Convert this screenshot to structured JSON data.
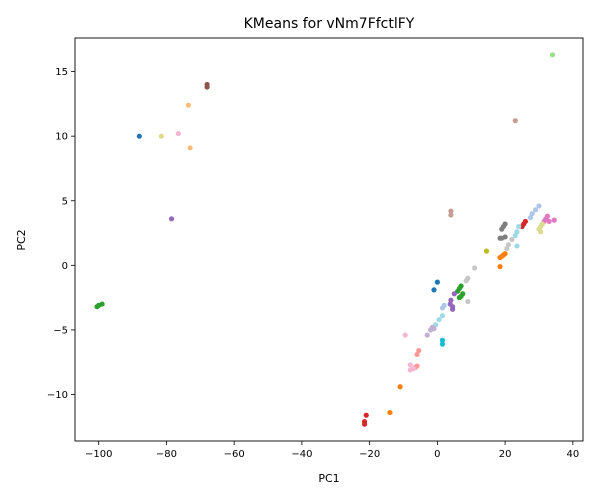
{
  "chart_data": {
    "type": "scatter",
    "title": "KMeans for vNm7FfctlFY",
    "xlabel": "PC1",
    "ylabel": "PC2",
    "xlim": [
      -107,
      43
    ],
    "ylim": [
      -13.6,
      17.6
    ],
    "xticks": [
      -100,
      -80,
      -60,
      -40,
      -20,
      0,
      20,
      40
    ],
    "yticks": [
      -10,
      -5,
      0,
      5,
      10,
      15
    ],
    "xtick_labels": [
      "−100",
      "−80",
      "−60",
      "−40",
      "−20",
      "0",
      "20",
      "40"
    ],
    "ytick_labels": [
      "−10",
      "−5",
      "0",
      "5",
      "10",
      "15"
    ],
    "grid": false,
    "points": [
      {
        "x": 34.0,
        "y": 16.3,
        "color": "#98df8a"
      },
      {
        "x": -68.0,
        "y": 14.0,
        "color": "#8c564b"
      },
      {
        "x": -68.0,
        "y": 13.8,
        "color": "#8c564b"
      },
      {
        "x": -73.5,
        "y": 12.4,
        "color": "#ffbb78"
      },
      {
        "x": 23.0,
        "y": 11.2,
        "color": "#c49c94"
      },
      {
        "x": -76.5,
        "y": 10.2,
        "color": "#f7b6d2"
      },
      {
        "x": -88.0,
        "y": 10.0,
        "color": "#1f77b4"
      },
      {
        "x": -81.5,
        "y": 10.0,
        "color": "#dbdb8d"
      },
      {
        "x": -73.0,
        "y": 9.1,
        "color": "#ffbb78"
      },
      {
        "x": 4.0,
        "y": 4.2,
        "color": "#c49c94"
      },
      {
        "x": 4.0,
        "y": 3.9,
        "color": "#c49c94"
      },
      {
        "x": -78.5,
        "y": 3.6,
        "color": "#9467bd"
      },
      {
        "x": 30.0,
        "y": 4.6,
        "color": "#aec7e8"
      },
      {
        "x": 29.0,
        "y": 4.3,
        "color": "#aec7e8"
      },
      {
        "x": 28.0,
        "y": 4.0,
        "color": "#aec7e8"
      },
      {
        "x": 27.5,
        "y": 3.7,
        "color": "#aec7e8"
      },
      {
        "x": 32.5,
        "y": 3.8,
        "color": "#e377c2"
      },
      {
        "x": 32.0,
        "y": 3.6,
        "color": "#e377c2"
      },
      {
        "x": 33.0,
        "y": 3.4,
        "color": "#e377c2"
      },
      {
        "x": 34.5,
        "y": 3.5,
        "color": "#e377c2"
      },
      {
        "x": 31.5,
        "y": 3.4,
        "color": "#e377c2"
      },
      {
        "x": 26.0,
        "y": 3.4,
        "color": "#d62728"
      },
      {
        "x": 25.5,
        "y": 3.2,
        "color": "#d62728"
      },
      {
        "x": 25.0,
        "y": 3.0,
        "color": "#d62728"
      },
      {
        "x": 30.5,
        "y": 3.0,
        "color": "#dbdb8d"
      },
      {
        "x": 30.0,
        "y": 2.8,
        "color": "#dbdb8d"
      },
      {
        "x": 30.5,
        "y": 2.6,
        "color": "#dbdb8d"
      },
      {
        "x": 31.0,
        "y": 3.2,
        "color": "#dbdb8d"
      },
      {
        "x": 20.0,
        "y": 3.2,
        "color": "#7f7f7f"
      },
      {
        "x": 19.5,
        "y": 3.0,
        "color": "#7f7f7f"
      },
      {
        "x": 19.0,
        "y": 2.8,
        "color": "#7f7f7f"
      },
      {
        "x": 20.0,
        "y": 2.2,
        "color": "#7f7f7f"
      },
      {
        "x": 19.0,
        "y": 2.1,
        "color": "#7f7f7f"
      },
      {
        "x": 18.5,
        "y": 2.1,
        "color": "#7f7f7f"
      },
      {
        "x": 24.0,
        "y": 3.0,
        "color": "#9edae5"
      },
      {
        "x": 23.5,
        "y": 2.6,
        "color": "#9edae5"
      },
      {
        "x": 23.0,
        "y": 2.3,
        "color": "#9edae5"
      },
      {
        "x": 23.5,
        "y": 1.5,
        "color": "#9edae5"
      },
      {
        "x": 22.0,
        "y": 2.0,
        "color": "#c7c7c7"
      },
      {
        "x": 21.0,
        "y": 1.6,
        "color": "#c7c7c7"
      },
      {
        "x": 20.5,
        "y": 1.3,
        "color": "#c7c7c7"
      },
      {
        "x": 11.0,
        "y": -0.2,
        "color": "#c7c7c7"
      },
      {
        "x": 9.0,
        "y": -1.0,
        "color": "#c7c7c7"
      },
      {
        "x": 8.5,
        "y": -1.2,
        "color": "#c7c7c7"
      },
      {
        "x": 9.0,
        "y": -2.8,
        "color": "#c7c7c7"
      },
      {
        "x": 14.5,
        "y": 1.1,
        "color": "#bcbd22"
      },
      {
        "x": 20.0,
        "y": 0.9,
        "color": "#ff7f0e"
      },
      {
        "x": 19.5,
        "y": 0.8,
        "color": "#ff7f0e"
      },
      {
        "x": 19.0,
        "y": 0.7,
        "color": "#ff7f0e"
      },
      {
        "x": 18.5,
        "y": 0.6,
        "color": "#ff7f0e"
      },
      {
        "x": 18.5,
        "y": -0.1,
        "color": "#ff7f0e"
      },
      {
        "x": 0.0,
        "y": -1.3,
        "color": "#1f77b4"
      },
      {
        "x": -1.0,
        "y": -1.9,
        "color": "#1f77b4"
      },
      {
        "x": 7.0,
        "y": -1.6,
        "color": "#2ca02c"
      },
      {
        "x": 6.5,
        "y": -1.8,
        "color": "#2ca02c"
      },
      {
        "x": 6.0,
        "y": -2.0,
        "color": "#2ca02c"
      },
      {
        "x": 7.5,
        "y": -2.2,
        "color": "#2ca02c"
      },
      {
        "x": 7.0,
        "y": -2.4,
        "color": "#2ca02c"
      },
      {
        "x": 6.5,
        "y": -2.5,
        "color": "#2ca02c"
      },
      {
        "x": 5.0,
        "y": -2.2,
        "color": "#9467bd"
      },
      {
        "x": 4.0,
        "y": -2.7,
        "color": "#9467bd"
      },
      {
        "x": 3.8,
        "y": -3.0,
        "color": "#9467bd"
      },
      {
        "x": 4.5,
        "y": -3.2,
        "color": "#9467bd"
      },
      {
        "x": 4.5,
        "y": -3.4,
        "color": "#9467bd"
      },
      {
        "x": 2.0,
        "y": -3.1,
        "color": "#aec7e8"
      },
      {
        "x": 1.5,
        "y": -3.3,
        "color": "#aec7e8"
      },
      {
        "x": 1.5,
        "y": -3.9,
        "color": "#9edae5"
      },
      {
        "x": 0.5,
        "y": -4.2,
        "color": "#9edae5"
      },
      {
        "x": -0.5,
        "y": -4.6,
        "color": "#9edae5"
      },
      {
        "x": -1.5,
        "y": -4.8,
        "color": "#c5b0d5"
      },
      {
        "x": -2.0,
        "y": -5.0,
        "color": "#c5b0d5"
      },
      {
        "x": -1.0,
        "y": -4.9,
        "color": "#c5b0d5"
      },
      {
        "x": -3.0,
        "y": -5.4,
        "color": "#c5b0d5"
      },
      {
        "x": 1.5,
        "y": -5.8,
        "color": "#17becf"
      },
      {
        "x": 1.5,
        "y": -6.1,
        "color": "#17becf"
      },
      {
        "x": -9.5,
        "y": -5.4,
        "color": "#f7b6d2"
      },
      {
        "x": -5.5,
        "y": -6.6,
        "color": "#ff9896"
      },
      {
        "x": -6.0,
        "y": -6.9,
        "color": "#ff9896"
      },
      {
        "x": -6.0,
        "y": -7.8,
        "color": "#ff9896"
      },
      {
        "x": -6.5,
        "y": -7.9,
        "color": "#ff9896"
      },
      {
        "x": -8.0,
        "y": -7.7,
        "color": "#f7b6d2"
      },
      {
        "x": -8.0,
        "y": -8.1,
        "color": "#f7b6d2"
      },
      {
        "x": -7.0,
        "y": -8.0,
        "color": "#f7b6d2"
      },
      {
        "x": -11.0,
        "y": -9.4,
        "color": "#ff7f0e"
      },
      {
        "x": -14.0,
        "y": -11.4,
        "color": "#ff7f0e"
      },
      {
        "x": -21.0,
        "y": -11.6,
        "color": "#d62728"
      },
      {
        "x": -21.5,
        "y": -12.1,
        "color": "#d62728"
      },
      {
        "x": -21.5,
        "y": -12.3,
        "color": "#d62728"
      },
      {
        "x": -100.5,
        "y": -3.2,
        "color": "#2ca02c"
      },
      {
        "x": -100.0,
        "y": -3.1,
        "color": "#2ca02c"
      },
      {
        "x": -99.0,
        "y": -3.0,
        "color": "#2ca02c"
      }
    ]
  }
}
